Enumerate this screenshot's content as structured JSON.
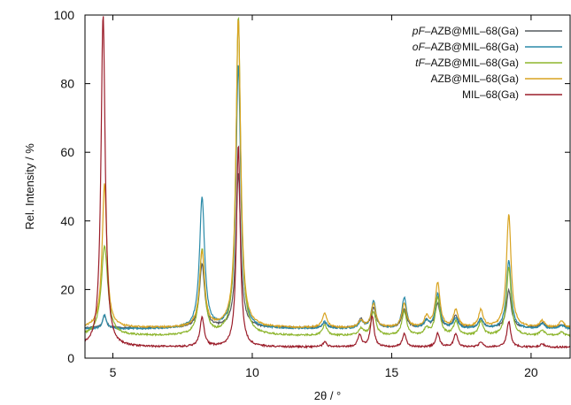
{
  "chart_data": {
    "type": "line",
    "xlabel": "2θ / °",
    "ylabel": "Rel. Intensity / %",
    "xlim": [
      4,
      21.4
    ],
    "ylim": [
      0,
      100
    ],
    "xticks": [
      5,
      10,
      15,
      20
    ],
    "xtick_labels": [
      "5",
      "10",
      "15",
      "20"
    ],
    "yticks": [
      0,
      20,
      40,
      60,
      80,
      100
    ],
    "ytick_labels": [
      "0",
      "20",
      "40",
      "60",
      "80",
      "100"
    ],
    "grid": false,
    "legend_position": "top-right",
    "series": [
      {
        "name": "pF–AZB@MIL–68(Ga)",
        "name_parts": [
          {
            "text": "pF",
            "italic": true
          },
          {
            "text": "–AZB@MIL–68(Ga)",
            "italic": false
          }
        ],
        "color": "#555a5f",
        "baseline": 8.8,
        "peaks": [
          [
            4.7,
            3.5,
            0.08
          ],
          [
            8.2,
            18.5,
            0.11
          ],
          [
            9.5,
            45,
            0.1
          ],
          [
            12.6,
            1.5,
            0.1
          ],
          [
            13.9,
            2.5,
            0.1
          ],
          [
            14.35,
            6,
            0.1
          ],
          [
            15.45,
            5.5,
            0.1
          ],
          [
            16.25,
            2,
            0.1
          ],
          [
            16.65,
            7,
            0.1
          ],
          [
            17.3,
            3.5,
            0.1
          ],
          [
            18.2,
            2.5,
            0.1
          ],
          [
            19.2,
            11,
            0.1
          ],
          [
            20.4,
            1.5,
            0.1
          ],
          [
            21.1,
            1,
            0.1
          ]
        ]
      },
      {
        "name": "oF–AZB@MIL–68(Ga)",
        "name_parts": [
          {
            "text": "oF",
            "italic": true
          },
          {
            "text": "–AZB@MIL–68(Ga)",
            "italic": false
          }
        ],
        "color": "#2a8aa8",
        "baseline": 8.5,
        "peaks": [
          [
            4.7,
            4,
            0.08
          ],
          [
            8.2,
            38,
            0.11
          ],
          [
            9.5,
            77,
            0.1
          ],
          [
            12.6,
            2,
            0.1
          ],
          [
            13.9,
            2,
            0.1
          ],
          [
            14.35,
            8,
            0.1
          ],
          [
            15.45,
            9,
            0.1
          ],
          [
            16.25,
            2,
            0.1
          ],
          [
            16.65,
            10,
            0.1
          ],
          [
            17.3,
            3,
            0.1
          ],
          [
            18.2,
            3,
            0.1
          ],
          [
            19.2,
            20,
            0.1
          ],
          [
            20.4,
            1.5,
            0.1
          ],
          [
            21.1,
            1,
            0.1
          ]
        ]
      },
      {
        "name": "tF–AZB@MIL–68(Ga)",
        "name_parts": [
          {
            "text": "tF",
            "italic": true
          },
          {
            "text": "–AZB@MIL–68(Ga)",
            "italic": false
          }
        ],
        "color": "#8db52d",
        "baseline": 6.5,
        "peaks": [
          [
            4.7,
            26,
            0.14
          ],
          [
            8.2,
            25,
            0.11
          ],
          [
            9.5,
            93,
            0.1
          ],
          [
            12.6,
            3,
            0.1
          ],
          [
            13.9,
            2,
            0.1
          ],
          [
            14.35,
            7,
            0.1
          ],
          [
            15.45,
            7,
            0.1
          ],
          [
            16.25,
            2,
            0.1
          ],
          [
            16.65,
            11,
            0.1
          ],
          [
            17.3,
            4,
            0.1
          ],
          [
            18.2,
            4,
            0.1
          ],
          [
            19.2,
            20,
            0.1
          ],
          [
            20.4,
            1.5,
            0.1
          ],
          [
            21.1,
            1,
            0.1
          ]
        ]
      },
      {
        "name": "AZB@MIL–68(Ga)",
        "name_parts": [
          {
            "text": "AZB@MIL–68(Ga)",
            "italic": false
          }
        ],
        "color": "#d8a320",
        "baseline": 8.8,
        "peaks": [
          [
            4.7,
            42,
            0.1
          ],
          [
            8.2,
            22,
            0.11
          ],
          [
            9.5,
            90,
            0.1
          ],
          [
            12.6,
            4,
            0.1
          ],
          [
            13.9,
            2,
            0.1
          ],
          [
            14.35,
            7,
            0.1
          ],
          [
            15.45,
            7,
            0.1
          ],
          [
            16.25,
            3,
            0.1
          ],
          [
            16.65,
            13,
            0.1
          ],
          [
            17.3,
            5,
            0.1
          ],
          [
            18.2,
            5,
            0.1
          ],
          [
            19.2,
            33,
            0.1
          ],
          [
            20.4,
            2,
            0.1
          ],
          [
            21.1,
            2,
            0.1
          ]
        ]
      },
      {
        "name": "MIL–68(Ga)",
        "name_parts": [
          {
            "text": "MIL–68(Ga)",
            "italic": false
          }
        ],
        "color": "#9b1d2a",
        "baseline": 3.2,
        "peaks": [
          [
            4.65,
            97,
            0.09
          ],
          [
            8.2,
            8.5,
            0.09
          ],
          [
            9.5,
            59,
            0.08
          ],
          [
            12.6,
            1.5,
            0.08
          ],
          [
            13.85,
            3.5,
            0.08
          ],
          [
            14.3,
            9,
            0.08
          ],
          [
            15.45,
            4,
            0.08
          ],
          [
            16.65,
            4,
            0.08
          ],
          [
            17.3,
            4,
            0.08
          ],
          [
            18.2,
            1.5,
            0.08
          ],
          [
            19.2,
            7.5,
            0.08
          ],
          [
            20.4,
            1,
            0.08
          ]
        ]
      }
    ]
  }
}
